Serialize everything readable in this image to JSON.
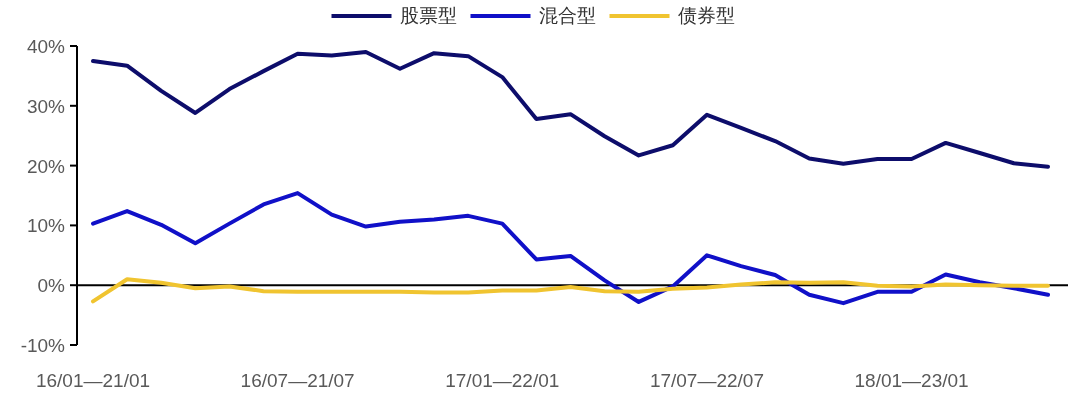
{
  "chart_data": {
    "type": "line",
    "categories": [
      "16/01—21/01",
      null,
      null,
      null,
      null,
      null,
      "16/07—21/07",
      null,
      null,
      null,
      null,
      null,
      "17/01—22/01",
      null,
      null,
      null,
      null,
      null,
      "17/07—22/07",
      null,
      null,
      null,
      null,
      null,
      "18/01—23/01",
      null,
      null,
      null,
      null
    ],
    "series": [
      {
        "name": "股票型",
        "color": "#0d0d6b",
        "values": [
          37.5,
          36.7,
          32.5,
          28.8,
          32.8,
          35.8,
          38.7,
          38.4,
          39.0,
          36.2,
          38.8,
          38.3,
          34.8,
          27.8,
          28.6,
          24.9,
          21.7,
          23.4,
          28.5,
          26.3,
          24.1,
          21.2,
          20.3,
          21.1,
          21.1,
          23.8,
          22.1,
          20.4,
          19.8
        ]
      },
      {
        "name": "混合型",
        "color": "#1010c8",
        "values": [
          10.3,
          12.4,
          10.1,
          7.0,
          10.3,
          13.5,
          15.4,
          11.8,
          9.8,
          10.6,
          11.0,
          11.6,
          10.3,
          4.3,
          4.9,
          0.8,
          -2.8,
          -0.2,
          5.0,
          3.2,
          1.7,
          -1.6,
          -3.0,
          -1.1,
          -1.1,
          1.8,
          0.5,
          -0.5,
          -1.6
        ]
      },
      {
        "name": "债券型",
        "color": "#f0c430",
        "values": [
          -2.7,
          1.0,
          0.4,
          -0.5,
          -0.2,
          -1.0,
          -1.1,
          -1.1,
          -1.1,
          -1.1,
          -1.2,
          -1.2,
          -0.9,
          -0.9,
          -0.3,
          -1.0,
          -1.1,
          -0.6,
          -0.4,
          0.1,
          0.5,
          0.4,
          0.5,
          -0.1,
          -0.2,
          0.1,
          0.0,
          -0.1,
          -0.1
        ]
      }
    ],
    "ylim": [
      -10,
      40
    ],
    "yticks": [
      {
        "value": -10,
        "label": "-10%"
      },
      {
        "value": 0,
        "label": "0%"
      },
      {
        "value": 10,
        "label": "10%"
      },
      {
        "value": 20,
        "label": "20%"
      },
      {
        "value": 30,
        "label": "30%"
      },
      {
        "value": 40,
        "label": "40%"
      }
    ],
    "ref_lines": [
      {
        "axis": "y",
        "value": 0,
        "color": "#000000"
      }
    ],
    "grid": false,
    "legend": "top",
    "marker": "none",
    "line_style": "solid"
  }
}
